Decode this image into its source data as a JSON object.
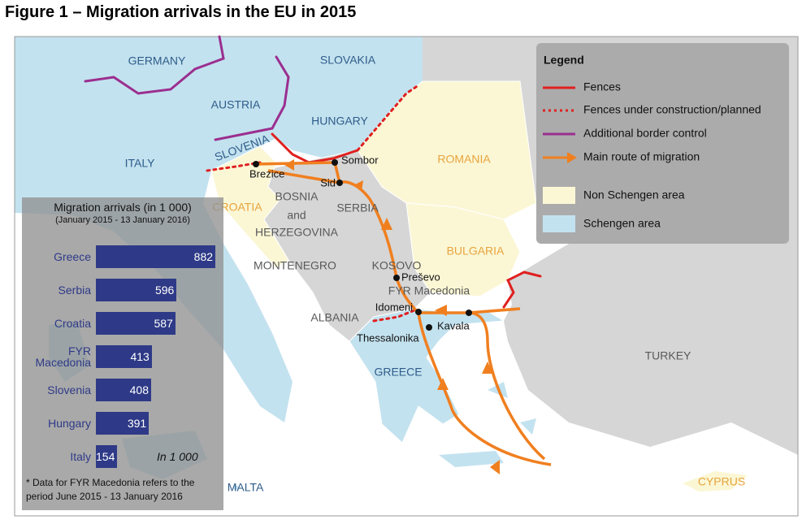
{
  "title": "Figure 1 – Migration arrivals in the EU in 2015",
  "legend": {
    "title": "Legend",
    "items": [
      "Fences",
      "Fences under construction/planned",
      "Additional border control",
      "Main route of migration",
      "Non Schengen area",
      "Schengen area"
    ]
  },
  "map": {
    "labels": [
      "GERMANY",
      "SLOVAKIA",
      "AUSTRIA",
      "HUNGARY",
      "ITALY",
      "SLOVENIA",
      "CROATIA",
      "BOSNIA",
      "and",
      "HERZEGOVINA",
      "SERBIA",
      "MONTENEGRO",
      "KOSOVO",
      "FYR Macedonia",
      "ALBANIA",
      "GREECE",
      "ROMANIA",
      "BULGARIA",
      "TURKEY",
      "CYPRUS",
      "MALTA"
    ],
    "cities": [
      "Sombor",
      "Sid",
      "Brezice",
      "Preševo",
      "Idomeni",
      "Thessalonika",
      "Kavala"
    ]
  },
  "chart_data": {
    "type": "bar",
    "title": "Migration arrivals (in 1 000)",
    "subtitle": "(January 2015 - 13 January 2016)",
    "categories": [
      "Greece",
      "Serbia",
      "Croatia",
      "FYR Macedonia",
      "Slovenia",
      "Hungary",
      "Italy"
    ],
    "values": [
      882,
      596,
      587,
      413,
      408,
      391,
      154
    ],
    "color": "#2e3a87",
    "unit_note": "In 1 000",
    "footnote": "* Data for FYR Macedonia refers to the period June 2015 - 13 January 2016"
  }
}
